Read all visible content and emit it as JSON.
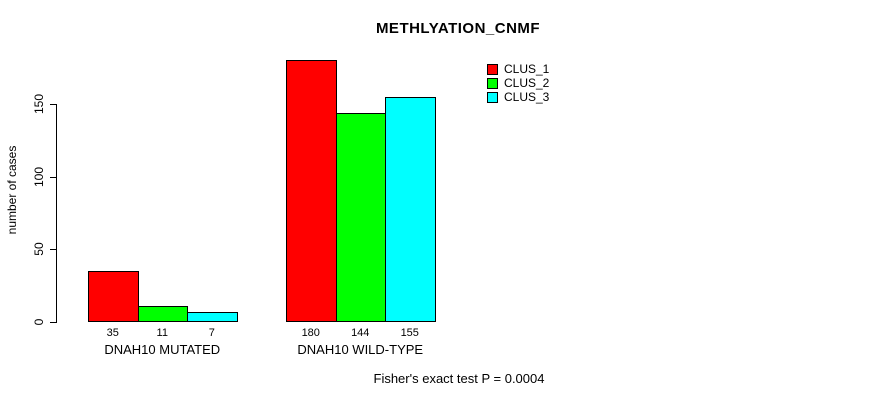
{
  "title": "METHLYATION_CNMF",
  "footer": "Fisher's exact test P = 0.0004",
  "chart_data": {
    "type": "bar",
    "title": "METHLYATION_CNMF",
    "xlabel": "",
    "ylabel": "number of cases",
    "yticks": [
      0,
      50,
      100,
      150
    ],
    "ylim": [
      0,
      186
    ],
    "grid": false,
    "legend_position": "top-right",
    "categories": [
      "DNAH10 MUTATED",
      "DNAH10 WILD-TYPE"
    ],
    "series": [
      {
        "name": "CLUS_1",
        "color": "#ff0000",
        "values": [
          35,
          180
        ]
      },
      {
        "name": "CLUS_2",
        "color": "#00ff00",
        "values": [
          11,
          144
        ]
      },
      {
        "name": "CLUS_3",
        "color": "#00ffff",
        "values": [
          7,
          155
        ]
      }
    ],
    "bar_value_labels": [
      [
        35,
        11,
        7
      ],
      [
        180,
        144,
        155
      ]
    ],
    "annotation": "Fisher's exact test P = 0.0004"
  }
}
